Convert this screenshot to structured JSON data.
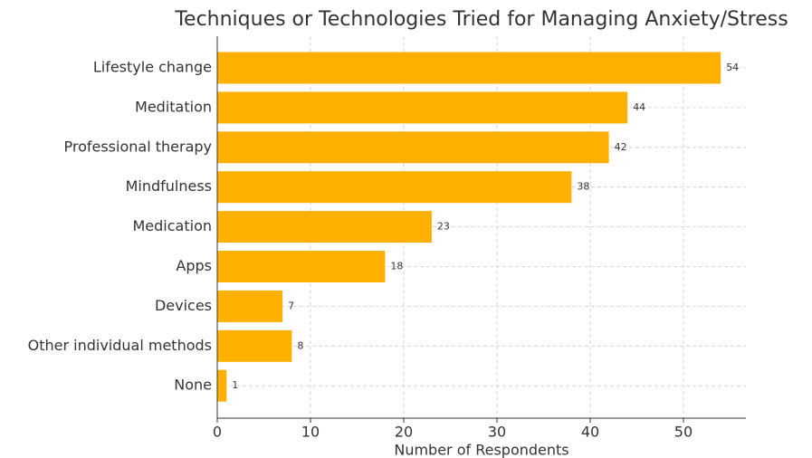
{
  "chart_data": {
    "type": "barh",
    "title": "Techniques or Technologies Tried for Managing Anxiety/Stress",
    "xlabel": "Number of Respondents",
    "categories": [
      "Lifestyle change",
      "Meditation",
      "Professional therapy",
      "Mindfulness",
      "Medication",
      "Apps",
      "Devices",
      "Other individual methods",
      "None"
    ],
    "values": [
      54,
      44,
      42,
      38,
      23,
      18,
      7,
      8,
      1
    ],
    "color": "#ffb000",
    "xlim": [
      0,
      56.7
    ],
    "xticks": [
      0,
      10,
      20,
      30,
      40,
      50
    ],
    "grid": true
  }
}
